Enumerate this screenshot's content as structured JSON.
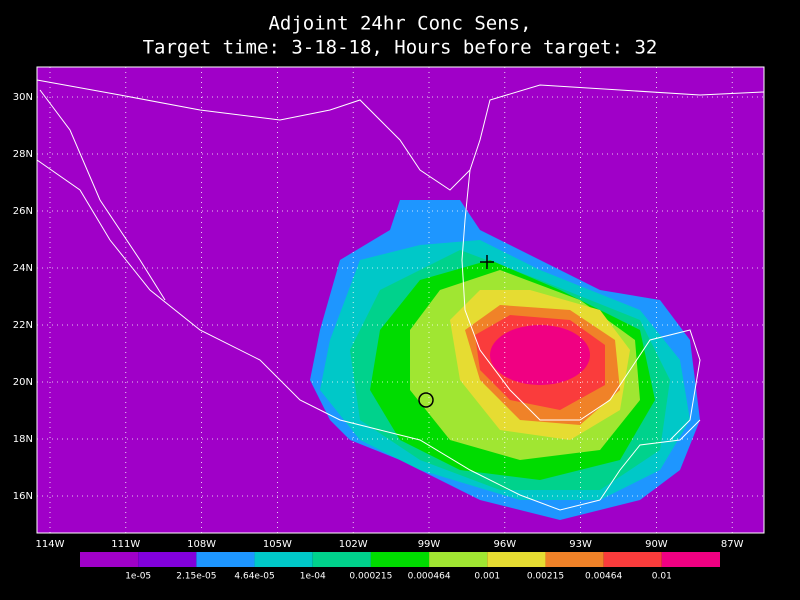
{
  "header": {
    "title_line1": "Adjoint 24hr Conc Sens,",
    "title_line2": "Target time: 3-18-18, Hours before target: 32"
  },
  "map": {
    "lat_labels": [
      "30N",
      "28N",
      "26N",
      "24N",
      "22N",
      "20N",
      "18N",
      "16N"
    ],
    "lon_labels": [
      "114W",
      "111W",
      "108W",
      "105W",
      "102W",
      "99W",
      "96W",
      "93W",
      "90W",
      "87W"
    ]
  },
  "colorbar": {
    "colors": [
      "#a000c8",
      "#8200dc",
      "#1e96ff",
      "#00c8c8",
      "#00d28c",
      "#00dc00",
      "#a0e632",
      "#e6dc32",
      "#f08228",
      "#fa3c3c",
      "#f00082"
    ],
    "labels": [
      "1e-05",
      "2.15e-05",
      "4.64e-05",
      "1e-04",
      "0.000215",
      "0.000464",
      "0.001",
      "0.00215",
      "0.00464",
      "0.01"
    ]
  }
}
